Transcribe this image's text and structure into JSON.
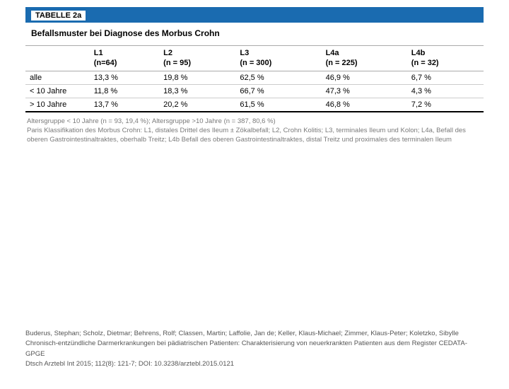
{
  "header_label": "TABELLE 2a",
  "title": "Befallsmuster bei Diagnose des Morbus Crohn",
  "columns": [
    {
      "h1": "L1",
      "h2": "(n=64)"
    },
    {
      "h1": "L2",
      "h2": "(n = 95)"
    },
    {
      "h1": "L3",
      "h2": "(n = 300)"
    },
    {
      "h1": "L4a",
      "h2": "(n = 225)"
    },
    {
      "h1": "L4b",
      "h2": "(n = 32)"
    }
  ],
  "rows": [
    {
      "label": "alle",
      "v": [
        "13,3 %",
        "19,8 %",
        "62,5 %",
        "46,9 %",
        "6,7 %"
      ]
    },
    {
      "label": "< 10 Jahre",
      "v": [
        "11,8 %",
        "18,3 %",
        "66,7 %",
        "47,3 %",
        "4,3 %"
      ]
    },
    {
      "label": "> 10 Jahre",
      "v": [
        "13,7 %",
        "20,2 %",
        "61,5 %",
        "46,8 %",
        "7,2 %"
      ]
    }
  ],
  "footnote": "Altersgruppe < 10 Jahre (n = 93, 19,4 %); Altersgruppe >10 Jahre (n = 387, 80,6 %)\nParis Klassifikation des Morbus Crohn: L1, distales Drittel des Ileum ± Zökalbefall; L2, Crohn Kolitis; L3, terminales Ileum und Kolon; L4a, Befall des oberen Gastrointestinaltraktes, oberhalb Treitz; L4b Befall des oberen Gastrointestinaltraktes, distal Treitz und proximales des terminalen Ileum",
  "citation": {
    "authors": "Buderus, Stephan; Scholz, Dietmar; Behrens, Rolf; Classen, Martin; Laffolie, Jan de; Keller, Klaus-Michael; Zimmer, Klaus-Peter; Koletzko, Sibylle",
    "title": "Chronisch-entzündliche Darmerkrankungen bei pädiatrischen Patienten: Charakterisierung von neuerkrankten Patienten aus dem Register CEDATA-GPGE",
    "source": "Dtsch Arztebl Int 2015; 112(8): 121-7; DOI: 10.3238/arztebl.2015.0121"
  },
  "colors": {
    "header_bg": "#1a6bb0",
    "header_fg": "#ffffff",
    "footnote_fg": "#7a7a7a",
    "citation_fg": "#555555"
  }
}
